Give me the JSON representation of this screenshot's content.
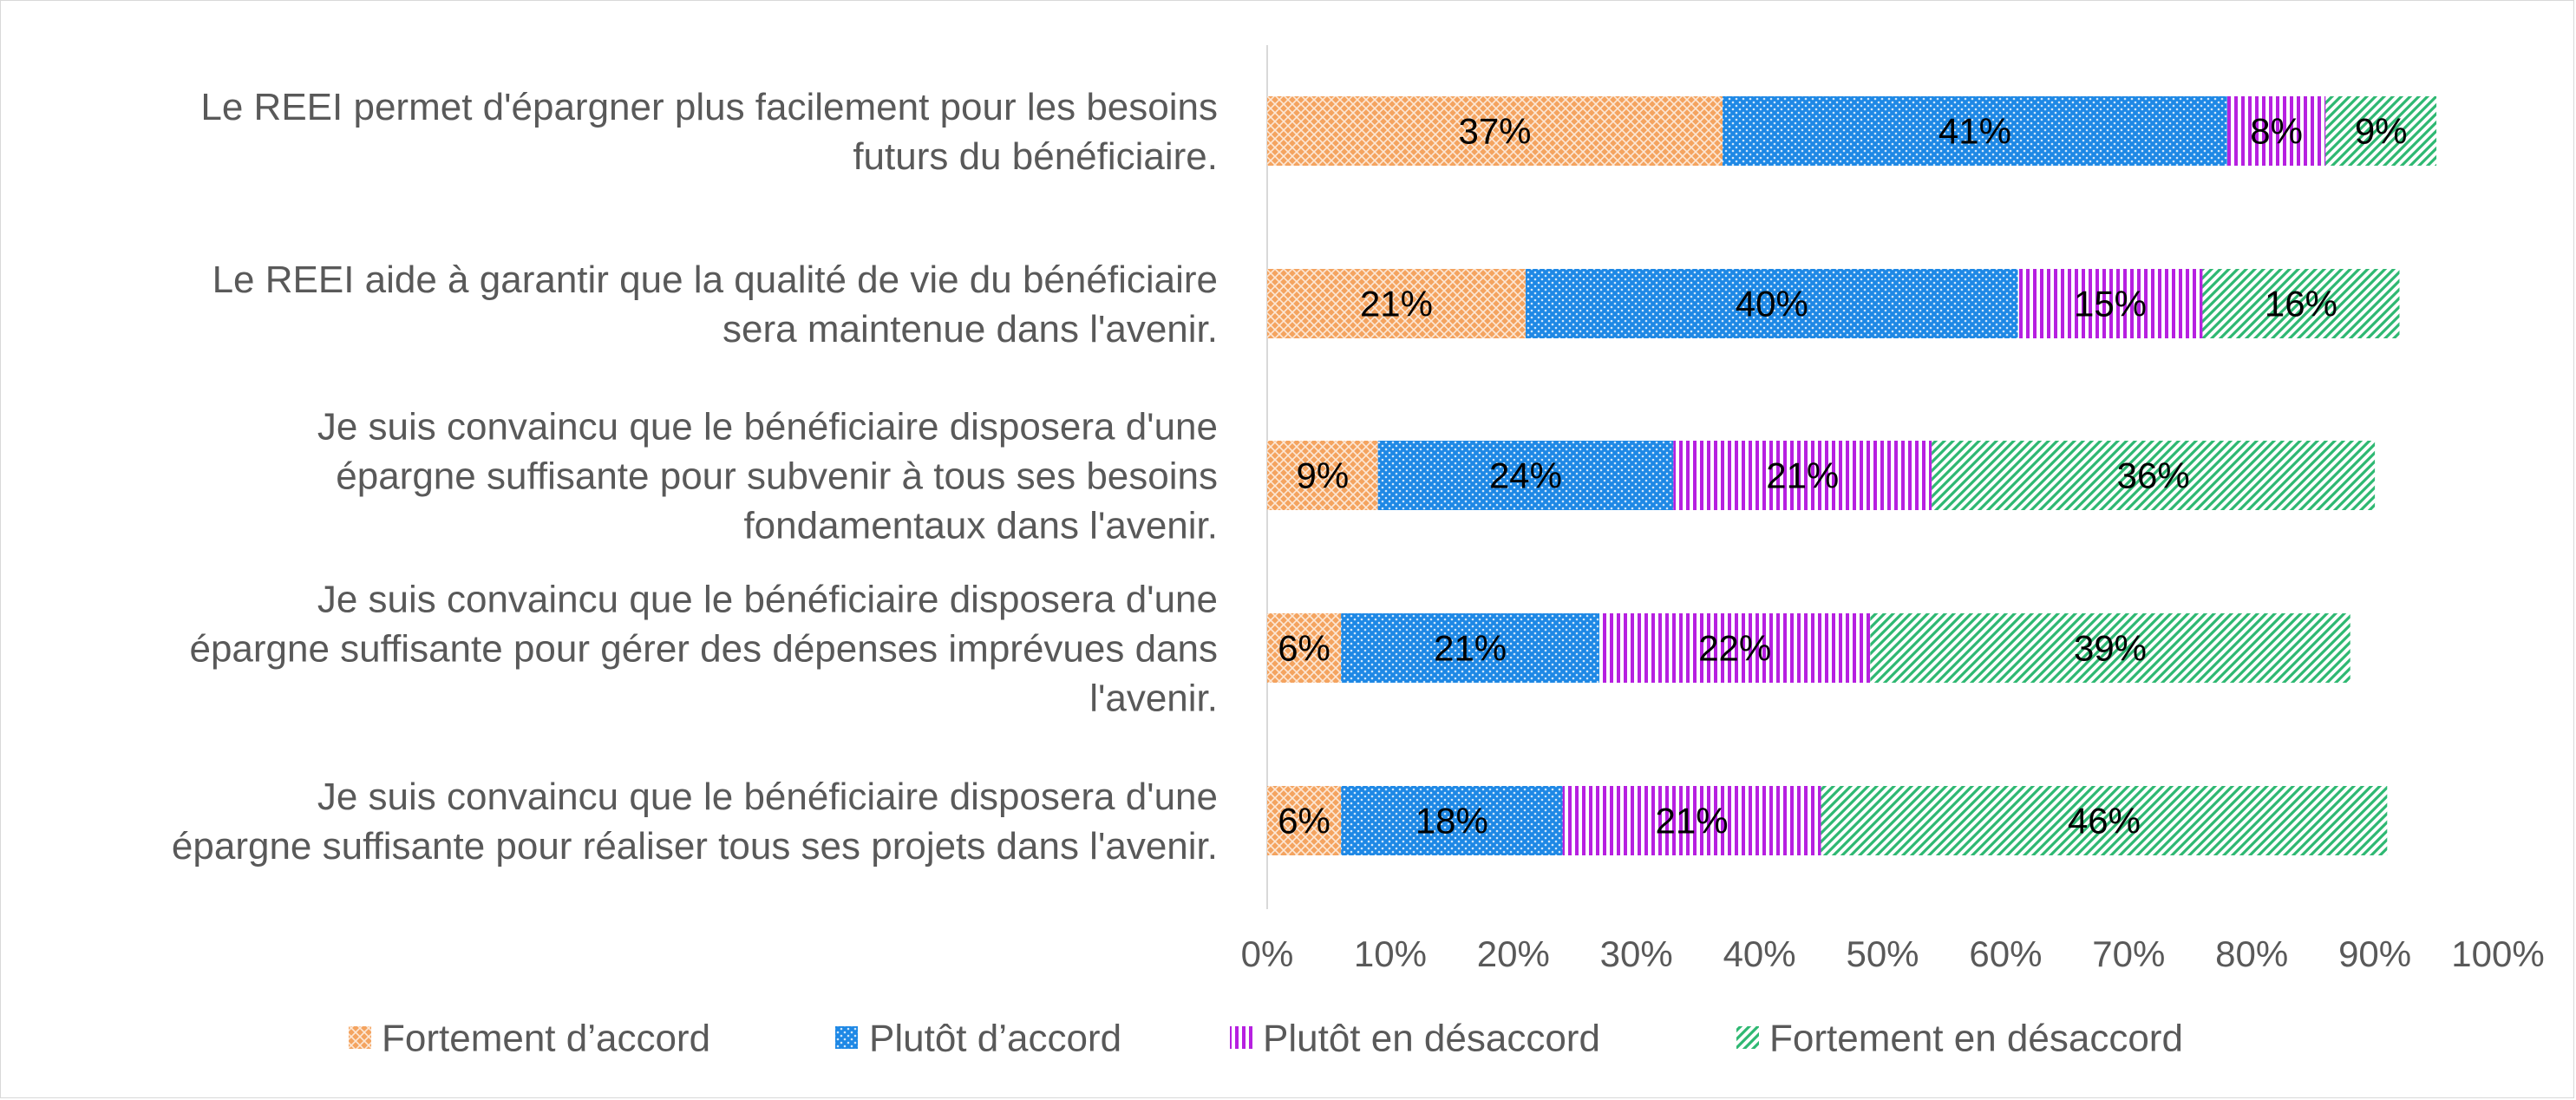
{
  "chart_data": {
    "type": "bar",
    "orientation": "horizontal",
    "stacked": true,
    "title": "",
    "xlabel": "",
    "ylabel": "",
    "xlim": [
      0,
      100
    ],
    "x_ticks": [
      "0%",
      "10%",
      "20%",
      "30%",
      "40%",
      "50%",
      "60%",
      "70%",
      "80%",
      "90%",
      "100%"
    ],
    "grid": false,
    "legend_position": "bottom",
    "categories": [
      [
        "Le REEI permet d'épargner plus facilement pour les besoins",
        "futurs du bénéficiaire."
      ],
      [
        "Le REEI aide à garantir que la qualité de vie du bénéficiaire",
        "sera maintenue dans l'avenir."
      ],
      [
        "Je suis convaincu que le bénéficiaire disposera d'une",
        "épargne suffisante pour subvenir à tous ses besoins",
        "fondamentaux dans l'avenir."
      ],
      [
        "Je suis convaincu que le bénéficiaire disposera d'une",
        "épargne suffisante pour gérer des dépenses imprévues dans",
        "l'avenir."
      ],
      [
        "Je suis convaincu que le bénéficiaire disposera d'une",
        "épargne suffisante pour réaliser tous ses projets dans l'avenir."
      ]
    ],
    "series": [
      {
        "name": "Fortement d’accord",
        "color": "#f4a460",
        "pattern": "crosshatch",
        "values": [
          37,
          21,
          9,
          6,
          6
        ],
        "labels": [
          "37%",
          "21%",
          "9%",
          "6%",
          "6%"
        ]
      },
      {
        "name": "Plutôt d’accord",
        "color": "#1e88e5",
        "pattern": "dots",
        "values": [
          41,
          40,
          24,
          21,
          18
        ],
        "labels": [
          "41%",
          "40%",
          "24%",
          "21%",
          "18%"
        ]
      },
      {
        "name": "Plutôt en désaccord",
        "color": "#b620e0",
        "pattern": "vertical",
        "values": [
          8,
          15,
          21,
          22,
          21
        ],
        "labels": [
          "8%",
          "15%",
          "21%",
          "22%",
          "21%"
        ]
      },
      {
        "name": "Fortement en désaccord",
        "color": "#2eb872",
        "pattern": "diagonal",
        "values": [
          9,
          16,
          36,
          39,
          46
        ],
        "labels": [
          "9%",
          "16%",
          "36%",
          "39%",
          "46%"
        ]
      }
    ]
  }
}
